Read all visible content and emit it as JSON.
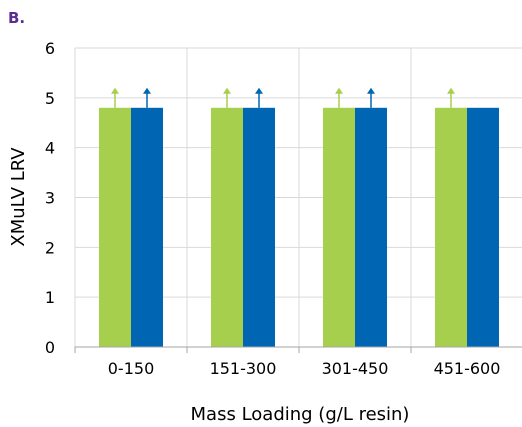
{
  "panel_label": "B.",
  "colors": {
    "panel_label": "#5a2d91",
    "series_1": "#a5cf4c",
    "series_2": "#0065b3",
    "grid": "#d9d9d9",
    "axis": "#a6a6a6"
  },
  "chart_data": {
    "type": "bar",
    "xlabel": "Mass Loading (g/L resin)",
    "ylabel": "XMuLV  LRV",
    "ylim": [
      0,
      6
    ],
    "yticks": [
      "0",
      "1",
      "2",
      "3",
      "4",
      "5",
      "6"
    ],
    "grid": true,
    "categories": [
      "0-150",
      "151-300",
      "301-450",
      "451-600"
    ],
    "series": [
      {
        "values": [
          4.8,
          4.8,
          4.8,
          4.8
        ],
        "arrow": [
          true,
          true,
          true,
          true
        ]
      },
      {
        "values": [
          4.8,
          4.8,
          4.8,
          4.8
        ],
        "arrow": [
          true,
          true,
          true,
          false
        ]
      }
    ]
  }
}
